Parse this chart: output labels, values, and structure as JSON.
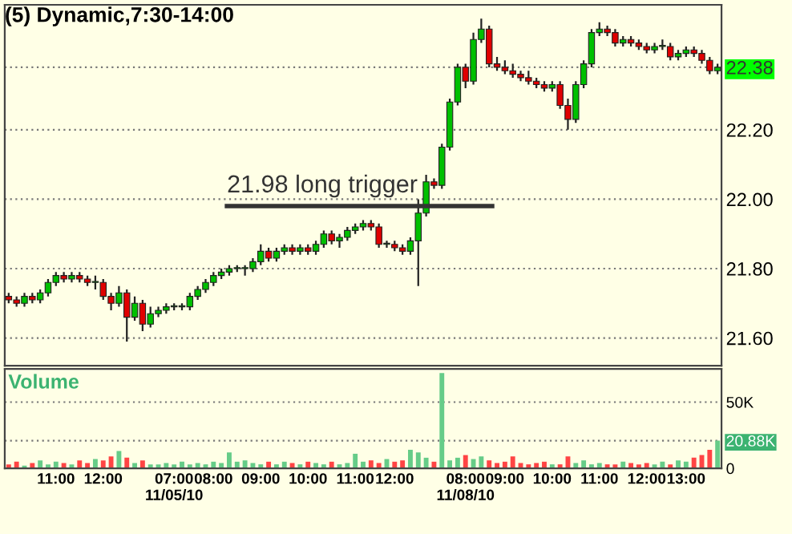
{
  "chart_data": [
    {
      "type": "candlestick",
      "title": "(5) Dynamic,7:30-14:00",
      "categories": [
        null,
        null,
        null,
        null,
        null,
        null,
        null,
        null,
        null,
        null,
        null,
        null,
        null,
        null,
        null,
        null,
        null,
        null,
        null,
        null,
        null,
        null,
        null,
        null,
        null,
        null,
        null,
        null,
        null,
        null,
        null,
        null,
        null,
        null,
        null,
        null,
        null,
        null,
        null,
        null,
        null,
        null,
        null,
        null,
        null,
        null,
        null,
        null,
        null,
        null,
        null,
        null,
        null,
        null,
        null,
        null,
        null,
        null,
        null,
        null,
        null,
        null,
        null,
        null,
        null,
        null,
        null,
        null,
        null,
        null,
        null,
        null,
        null,
        null,
        null,
        null,
        null,
        null,
        null,
        null,
        null,
        null,
        null,
        null,
        null,
        null,
        null,
        null,
        null,
        null,
        null
      ],
      "ohlc": [
        [
          21.72,
          21.73,
          21.7,
          21.71
        ],
        [
          21.71,
          21.72,
          21.69,
          21.7
        ],
        [
          21.7,
          21.73,
          21.69,
          21.72
        ],
        [
          21.72,
          21.73,
          21.7,
          21.71
        ],
        [
          21.71,
          21.74,
          21.7,
          21.73
        ],
        [
          21.73,
          21.77,
          21.72,
          21.76
        ],
        [
          21.76,
          21.79,
          21.75,
          21.78
        ],
        [
          21.78,
          21.79,
          21.76,
          21.77
        ],
        [
          21.77,
          21.79,
          21.76,
          21.78
        ],
        [
          21.78,
          21.79,
          21.76,
          21.77
        ],
        [
          21.77,
          21.78,
          21.75,
          21.76
        ],
        [
          21.76,
          21.78,
          21.74,
          21.76
        ],
        [
          21.76,
          21.77,
          21.71,
          21.72
        ],
        [
          21.72,
          21.73,
          21.68,
          21.7
        ],
        [
          21.7,
          21.75,
          21.69,
          21.73
        ],
        [
          21.73,
          21.74,
          21.59,
          21.66
        ],
        [
          21.66,
          21.72,
          21.65,
          21.7
        ],
        [
          21.7,
          21.71,
          21.62,
          21.64
        ],
        [
          21.64,
          21.69,
          21.63,
          21.67
        ],
        [
          21.67,
          21.69,
          21.66,
          21.68
        ],
        [
          21.68,
          21.7,
          21.67,
          21.69
        ],
        [
          21.69,
          21.7,
          21.68,
          21.69
        ],
        [
          21.69,
          21.7,
          21.68,
          21.69
        ],
        [
          21.69,
          21.73,
          21.68,
          21.72
        ],
        [
          21.72,
          21.75,
          21.71,
          21.74
        ],
        [
          21.74,
          21.77,
          21.73,
          21.76
        ],
        [
          21.76,
          21.79,
          21.75,
          21.78
        ],
        [
          21.78,
          21.8,
          21.77,
          21.79
        ],
        [
          21.79,
          21.81,
          21.78,
          21.8
        ],
        [
          21.8,
          21.81,
          21.79,
          21.8
        ],
        [
          21.8,
          21.81,
          21.78,
          21.8
        ],
        [
          21.8,
          21.83,
          21.79,
          21.82
        ],
        [
          21.82,
          21.87,
          21.81,
          21.85
        ],
        [
          21.85,
          21.86,
          21.82,
          21.83
        ],
        [
          21.83,
          21.86,
          21.82,
          21.85
        ],
        [
          21.85,
          21.87,
          21.84,
          21.86
        ],
        [
          21.86,
          21.87,
          21.84,
          21.85
        ],
        [
          21.85,
          21.87,
          21.84,
          21.86
        ],
        [
          21.86,
          21.87,
          21.84,
          21.85
        ],
        [
          21.85,
          21.88,
          21.84,
          21.87
        ],
        [
          21.87,
          21.91,
          21.86,
          21.9
        ],
        [
          21.9,
          21.91,
          21.87,
          21.88
        ],
        [
          21.88,
          21.9,
          21.86,
          21.89
        ],
        [
          21.89,
          21.92,
          21.88,
          21.91
        ],
        [
          21.91,
          21.93,
          21.9,
          21.92
        ],
        [
          21.92,
          21.94,
          21.91,
          21.93
        ],
        [
          21.93,
          21.94,
          21.91,
          21.92
        ],
        [
          21.92,
          21.93,
          21.86,
          21.87
        ],
        [
          21.87,
          21.88,
          21.86,
          21.87
        ],
        [
          21.87,
          21.88,
          21.85,
          21.86
        ],
        [
          21.86,
          21.87,
          21.84,
          21.85
        ],
        [
          21.85,
          21.89,
          21.84,
          21.88
        ],
        [
          21.88,
          22.0,
          21.75,
          21.96
        ],
        [
          21.96,
          22.07,
          21.95,
          22.05
        ],
        [
          22.05,
          22.06,
          22.03,
          22.04
        ],
        [
          22.04,
          22.16,
          22.03,
          22.15
        ],
        [
          22.15,
          22.29,
          22.14,
          22.28
        ],
        [
          22.28,
          22.39,
          22.27,
          22.38
        ],
        [
          22.38,
          22.39,
          22.32,
          22.34
        ],
        [
          22.34,
          22.48,
          22.33,
          22.46
        ],
        [
          22.46,
          22.52,
          22.45,
          22.49
        ],
        [
          22.49,
          22.5,
          22.38,
          22.39
        ],
        [
          22.39,
          22.41,
          22.37,
          22.38
        ],
        [
          22.38,
          22.4,
          22.36,
          22.37
        ],
        [
          22.37,
          22.39,
          22.35,
          22.36
        ],
        [
          22.36,
          22.37,
          22.34,
          22.35
        ],
        [
          22.35,
          22.37,
          22.33,
          22.34
        ],
        [
          22.34,
          22.35,
          22.32,
          22.33
        ],
        [
          22.33,
          22.34,
          22.31,
          22.32
        ],
        [
          22.32,
          22.34,
          22.31,
          22.33
        ],
        [
          22.33,
          22.34,
          22.26,
          22.27
        ],
        [
          22.27,
          22.29,
          22.2,
          22.23
        ],
        [
          22.23,
          22.34,
          22.22,
          22.33
        ],
        [
          22.33,
          22.4,
          22.32,
          22.39
        ],
        [
          22.39,
          22.49,
          22.38,
          22.48
        ],
        [
          22.48,
          22.51,
          22.47,
          22.49
        ],
        [
          22.49,
          22.5,
          22.47,
          22.48
        ],
        [
          22.48,
          22.49,
          22.44,
          22.45
        ],
        [
          22.45,
          22.47,
          22.44,
          22.46
        ],
        [
          22.46,
          22.47,
          22.44,
          22.45
        ],
        [
          22.45,
          22.46,
          22.43,
          22.44
        ],
        [
          22.44,
          22.45,
          22.42,
          22.43
        ],
        [
          22.43,
          22.45,
          22.42,
          22.44
        ],
        [
          22.44,
          22.46,
          22.43,
          22.44
        ],
        [
          22.44,
          22.45,
          22.4,
          22.41
        ],
        [
          22.41,
          22.43,
          22.4,
          22.42
        ],
        [
          22.42,
          22.44,
          22.41,
          22.43
        ],
        [
          22.43,
          22.44,
          22.41,
          22.42
        ],
        [
          22.42,
          22.43,
          22.39,
          22.4
        ],
        [
          22.4,
          22.41,
          22.36,
          22.37
        ],
        [
          22.37,
          22.39,
          22.36,
          22.38
        ]
      ],
      "colors": [
        "#e00000",
        "#e00000",
        "#00c000",
        "#e00000",
        "#00c000",
        "#00c000",
        "#00c000",
        "#e00000",
        "#00c000",
        "#e00000",
        "#e00000",
        "#00c000",
        "#e00000",
        "#e00000",
        "#00c000",
        "#e00000",
        "#00c000",
        "#e00000",
        "#00c000",
        "#00c000",
        "#00c000",
        "#00c000",
        "#00c000",
        "#00c000",
        "#00c000",
        "#00c000",
        "#00c000",
        "#00c000",
        "#00c000",
        "#00c000",
        "#00c000",
        "#00c000",
        "#00c000",
        "#e00000",
        "#00c000",
        "#00c000",
        "#e00000",
        "#00c000",
        "#e00000",
        "#00c000",
        "#00c000",
        "#e00000",
        "#00c000",
        "#00c000",
        "#00c000",
        "#00c000",
        "#e00000",
        "#e00000",
        "#00c000",
        "#e00000",
        "#e00000",
        "#00c000",
        "#00c000",
        "#00c000",
        "#e00000",
        "#00c000",
        "#00c000",
        "#00c000",
        "#e00000",
        "#00c000",
        "#00c000",
        "#e00000",
        "#e00000",
        "#e00000",
        "#e00000",
        "#e00000",
        "#e00000",
        "#e00000",
        "#e00000",
        "#00c000",
        "#e00000",
        "#e00000",
        "#00c000",
        "#00c000",
        "#00c000",
        "#00c000",
        "#e00000",
        "#e00000",
        "#00c000",
        "#e00000",
        "#e00000",
        "#e00000",
        "#00c000",
        "#00c000",
        "#e00000",
        "#00c000",
        "#00c000",
        "#e00000",
        "#e00000",
        "#e00000",
        "#00c000"
      ],
      "ylim": [
        21.52,
        22.56
      ],
      "yticks": [
        {
          "value": 21.6,
          "label": "21.60"
        },
        {
          "value": 21.8,
          "label": "21.80"
        },
        {
          "value": 22.0,
          "label": "22.00"
        },
        {
          "value": 22.2,
          "label": "22.20"
        },
        {
          "value": 22.38,
          "label": "22.38"
        }
      ],
      "ref_lines": [
        {
          "axis": "y",
          "value": 21.98,
          "label": "21.98 long trigger",
          "color": "#333333"
        }
      ],
      "grid": "y",
      "tick_labels": "y"
    },
    {
      "type": "bar",
      "title": "Volume",
      "categories": [
        null,
        null,
        null,
        null,
        null,
        null,
        "11:00",
        null,
        null,
        null,
        null,
        null,
        "12:00",
        null,
        null,
        null,
        null,
        null,
        null,
        null,
        null,
        "07:00\n11/05/10",
        null,
        null,
        null,
        null,
        "08:00",
        null,
        null,
        null,
        null,
        null,
        "09:00",
        null,
        null,
        null,
        null,
        null,
        "10:00",
        null,
        null,
        null,
        null,
        null,
        "11:00",
        null,
        null,
        null,
        null,
        "12:00",
        null,
        null,
        null,
        null,
        null,
        null,
        null,
        null,
        "08:00\n11/08/10",
        null,
        null,
        null,
        null,
        "09:00",
        null,
        null,
        null,
        null,
        null,
        "10:00",
        null,
        null,
        null,
        null,
        null,
        "11:00",
        null,
        null,
        null,
        null,
        null,
        "12:00",
        null,
        null,
        null,
        null,
        "13:00",
        null,
        null,
        null,
        null
      ],
      "values": [
        3000,
        5000,
        2000,
        4000,
        6000,
        3000,
        5000,
        4000,
        3000,
        6000,
        4000,
        7000,
        6000,
        9000,
        13000,
        8000,
        4000,
        6000,
        3000,
        3000,
        4000,
        3000,
        5000,
        3000,
        4000,
        3000,
        5000,
        4000,
        12000,
        5000,
        6000,
        4000,
        3000,
        5000,
        3000,
        5000,
        4000,
        3000,
        5000,
        4000,
        3000,
        5000,
        3000,
        4000,
        11000,
        5000,
        6000,
        4000,
        7000,
        5000,
        6000,
        14000,
        12000,
        8000,
        5000,
        72000,
        6000,
        8000,
        10000,
        7000,
        9000,
        6000,
        4000,
        5000,
        9000,
        4000,
        3000,
        4000,
        5000,
        3000,
        3000,
        9000,
        4000,
        6000,
        3000,
        4000,
        3000,
        3000,
        5000,
        4000,
        3000,
        4000,
        3000,
        5000,
        3000,
        6000,
        5000,
        8000,
        10000,
        14000,
        20880
      ],
      "colors": [
        "#ff4444",
        "#ff4444",
        "#66cc88",
        "#ff4444",
        "#66cc88",
        "#66cc88",
        "#66cc88",
        "#ff4444",
        "#66cc88",
        "#ff4444",
        "#ff4444",
        "#66cc88",
        "#ff4444",
        "#ff4444",
        "#66cc88",
        "#ff4444",
        "#66cc88",
        "#ff4444",
        "#66cc88",
        "#66cc88",
        "#66cc88",
        "#66cc88",
        "#66cc88",
        "#66cc88",
        "#66cc88",
        "#66cc88",
        "#66cc88",
        "#66cc88",
        "#66cc88",
        "#66cc88",
        "#66cc88",
        "#66cc88",
        "#66cc88",
        "#ff4444",
        "#66cc88",
        "#66cc88",
        "#ff4444",
        "#66cc88",
        "#ff4444",
        "#66cc88",
        "#66cc88",
        "#ff4444",
        "#66cc88",
        "#66cc88",
        "#66cc88",
        "#66cc88",
        "#ff4444",
        "#ff4444",
        "#66cc88",
        "#ff4444",
        "#ff4444",
        "#66cc88",
        "#66cc88",
        "#66cc88",
        "#ff4444",
        "#66cc88",
        "#66cc88",
        "#66cc88",
        "#ff4444",
        "#66cc88",
        "#66cc88",
        "#ff4444",
        "#ff4444",
        "#ff4444",
        "#ff4444",
        "#ff4444",
        "#ff4444",
        "#ff4444",
        "#ff4444",
        "#66cc88",
        "#ff4444",
        "#ff4444",
        "#66cc88",
        "#66cc88",
        "#66cc88",
        "#66cc88",
        "#ff4444",
        "#ff4444",
        "#66cc88",
        "#ff4444",
        "#ff4444",
        "#ff4444",
        "#66cc88",
        "#66cc88",
        "#ff4444",
        "#66cc88",
        "#66cc88",
        "#ff4444",
        "#ff4444",
        "#ff4444",
        "#66cc88"
      ],
      "ylim": [
        0,
        75000
      ],
      "yticks": [
        0,
        {
          "value": 50000,
          "label": "50K"
        },
        {
          "value": 20880,
          "label": "20.88K"
        }
      ],
      "grid": "y"
    }
  ]
}
